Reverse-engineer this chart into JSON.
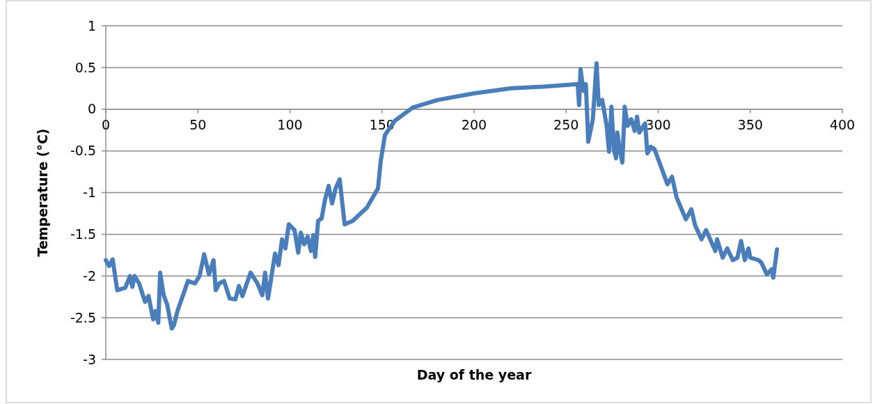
{
  "chart_data": {
    "type": "line",
    "xlabel": "Day of the year",
    "ylabel": "Temperature (°C)",
    "xlim": [
      0,
      400
    ],
    "xticks": [
      0,
      50,
      100,
      150,
      200,
      250,
      300,
      350,
      400
    ],
    "ylim": [
      -3,
      1
    ],
    "yticks": [
      -3,
      -2.5,
      -2,
      -1.5,
      -1,
      -0.5,
      0,
      0.5,
      1
    ],
    "grid": "y",
    "marker": "none",
    "line_style": "solid",
    "series": [
      {
        "color": "#4a7ebb",
        "x": [
          0,
          1.8,
          3.7,
          6.2,
          10.6,
          13.1,
          14.4,
          15.6,
          18.1,
          21.3,
          23.2,
          25.7,
          27,
          28.5,
          29.5,
          31.4,
          33.3,
          35.8,
          37,
          38.9,
          40.8,
          44.6,
          48.4,
          50.9,
          53.4,
          56,
          58.5,
          59.7,
          61.6,
          64.2,
          67.3,
          70.4,
          72.3,
          74.2,
          78.6,
          82.4,
          85,
          86.5,
          88.1,
          90,
          91.9,
          93.8,
          95.7,
          97.5,
          99.4,
          102.5,
          104.5,
          105.9,
          107.7,
          109.6,
          111.4,
          112.7,
          113.7,
          115.3,
          117.2,
          119,
          121,
          122.9,
          124.8,
          127,
          129.7,
          134,
          141.8,
          147.8,
          149.3,
          151.6,
          156.9,
          166.7,
          180,
          200,
          220,
          237.4,
          256.3,
          257,
          257.8,
          259.4,
          260.7,
          262,
          264.5,
          266.5,
          267.7,
          269.6,
          272,
          273.3,
          274.6,
          275.9,
          277.1,
          277.8,
          279,
          280.5,
          281.8,
          283.4,
          285.3,
          287.2,
          288.5,
          289.7,
          292.9,
          294.1,
          296,
          298,
          305,
          307.5,
          310,
          315,
          318,
          320,
          323.5,
          326,
          331,
          332,
          335,
          337.5,
          340.5,
          343,
          345,
          347,
          349,
          350,
          354.5,
          356,
          359,
          361.5,
          362.5,
          364.5
        ],
        "values": [
          -1.81,
          -1.88,
          -1.8,
          -2.17,
          -2.14,
          -2.0,
          -2.13,
          -2.0,
          -2.09,
          -2.31,
          -2.24,
          -2.52,
          -2.42,
          -2.56,
          -1.96,
          -2.23,
          -2.34,
          -2.63,
          -2.59,
          -2.42,
          -2.3,
          -2.06,
          -2.09,
          -2.0,
          -1.74,
          -1.98,
          -1.81,
          -2.17,
          -2.09,
          -2.06,
          -2.27,
          -2.28,
          -2.12,
          -2.24,
          -1.96,
          -2.09,
          -2.23,
          -1.96,
          -2.27,
          -2.0,
          -1.73,
          -1.87,
          -1.56,
          -1.67,
          -1.38,
          -1.45,
          -1.72,
          -1.48,
          -1.62,
          -1.53,
          -1.7,
          -1.51,
          -1.77,
          -1.34,
          -1.31,
          -1.09,
          -0.92,
          -1.13,
          -0.95,
          -0.84,
          -1.38,
          -1.34,
          -1.18,
          -0.95,
          -0.62,
          -0.31,
          -0.14,
          0.02,
          0.11,
          0.19,
          0.25,
          0.27,
          0.3,
          0.05,
          0.48,
          0.22,
          0.3,
          -0.39,
          -0.12,
          0.55,
          0.05,
          0.11,
          -0.2,
          -0.51,
          0.03,
          -0.48,
          -0.59,
          -0.28,
          -0.48,
          -0.64,
          0.03,
          -0.2,
          -0.12,
          -0.26,
          -0.09,
          -0.28,
          -0.17,
          -0.53,
          -0.45,
          -0.48,
          -0.9,
          -0.81,
          -1.06,
          -1.32,
          -1.2,
          -1.39,
          -1.56,
          -1.45,
          -1.7,
          -1.56,
          -1.78,
          -1.67,
          -1.81,
          -1.78,
          -1.58,
          -1.81,
          -1.67,
          -1.78,
          -1.81,
          -1.84,
          -1.98,
          -1.92,
          -2.02,
          -1.68
        ]
      }
    ]
  }
}
